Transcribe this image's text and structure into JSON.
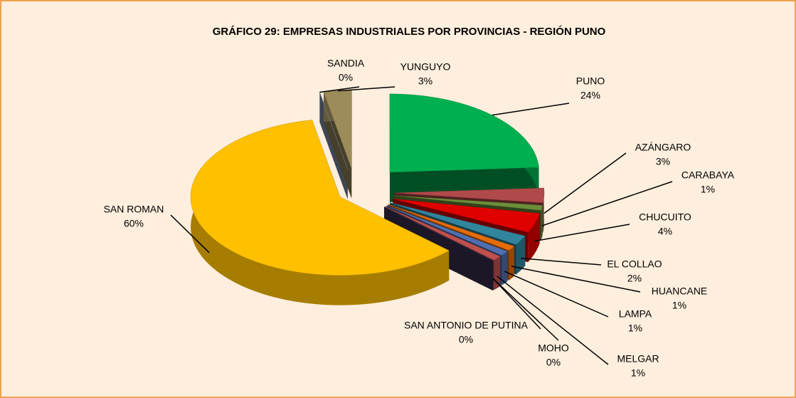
{
  "chart_data": {
    "type": "pie3d",
    "title": "GRÁFICO 29: EMPRESAS  INDUSTRIALES POR PROVINCIAS - REGIÓN PUNO",
    "categories": [
      "PUNO",
      "AZÁNGARO",
      "CARABAYA",
      "CHUCUITO",
      "EL COLLAO",
      "HUANCANE",
      "LAMPA",
      "MELGAR",
      "MOHO",
      "SAN ANTONIO  DE PUTINA",
      "SAN ROMAN",
      "SANDIA",
      "YUNGUYO"
    ],
    "values": [
      24,
      3,
      1,
      4,
      2,
      1,
      1,
      1,
      0,
      0,
      60,
      0,
      3
    ],
    "value_labels": [
      "24%",
      "3%",
      "1%",
      "4%",
      "2%",
      "1%",
      "1%",
      "1%",
      "0%",
      "0%",
      "60%",
      "0%",
      "3%"
    ],
    "colors": [
      "#00b050",
      "#b04a4a",
      "#6b8e3a",
      "#e00000",
      "#31859c",
      "#e46c0a",
      "#4f6fb0",
      "#c0504d",
      "#7a4f9a",
      "#3d3355",
      "#ffc000",
      "#8a9ab8",
      "#9c8c5a"
    ]
  }
}
